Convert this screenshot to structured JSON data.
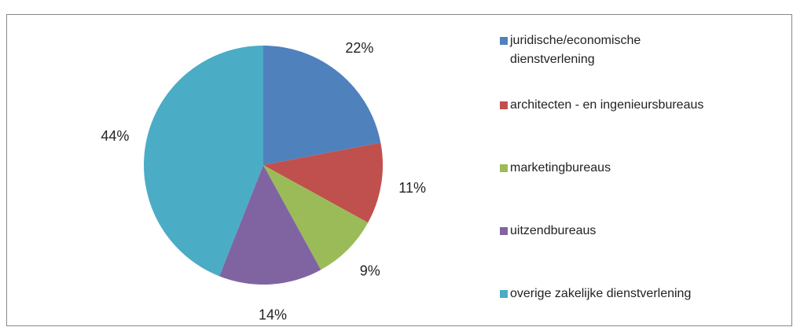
{
  "chart_data": {
    "type": "pie",
    "categories": [
      "juridische/economische dienstverlening",
      "architecten - en ingenieursbureaus",
      "marketingbureaus",
      "uitzendbureaus",
      "overige zakelijke dienstverlening"
    ],
    "values": [
      22,
      11,
      9,
      14,
      44
    ],
    "value_labels": [
      "22%",
      "11%",
      "9%",
      "14%",
      "44%"
    ],
    "colors": [
      "#4f81bd",
      "#c0504d",
      "#9bbb59",
      "#8064a2",
      "#4bacc6"
    ],
    "legend": "right"
  }
}
